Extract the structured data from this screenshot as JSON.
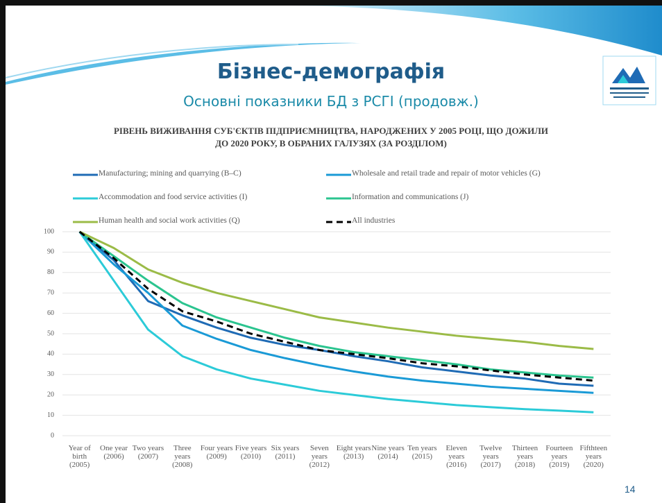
{
  "slide": {
    "title": "Бізнес-демографія",
    "subtitle": "Основні показники БД з РСГІ (продовж.)",
    "page_number": "14"
  },
  "chart_data": {
    "type": "line",
    "title": "РІВЕНЬ ВИЖИВАННЯ СУБ'ЄКТІВ ПІДПРИЄМНИЦТВА, НАРОДЖЕНИХ У 2005 РОЦІ, ЩО ДОЖИЛИ ДО 2020 РОКУ, В ОБРАНИХ ГАЛУЗЯХ (ЗА РОЗДІЛОМ)",
    "categories": [
      "Year of birth (2005)",
      "One year (2006)",
      "Two years (2007)",
      "Three years (2008)",
      "Four years (2009)",
      "Five years (2010)",
      "Six years (2011)",
      "Seven years (2012)",
      "Eight years (2013)",
      "Nine years (2014)",
      "Ten years (2015)",
      "Eleven years (2016)",
      "Twelve years (2017)",
      "Thirteen years (2018)",
      "Fourteen years (2019)",
      "Fifthteen years (2020)"
    ],
    "series": [
      {
        "name": "Manufacturing; mining and quarrying (B–C)",
        "color": "#1f6bb5",
        "values": [
          100,
          86,
          66,
          59,
          53,
          48,
          44.5,
          42,
          39,
          36.5,
          33.5,
          31.5,
          29.5,
          28,
          25.5,
          24.5
        ]
      },
      {
        "name": "Wholesale and retail trade and repair of motor vehicles (G)",
        "color": "#1a9ad6",
        "values": [
          100,
          84,
          70,
          54,
          47.5,
          42,
          38,
          34.5,
          31.5,
          29,
          27,
          25.5,
          24,
          23,
          22,
          21
        ]
      },
      {
        "name": "Accommodation and food service activities (I)",
        "color": "#2ccbd8",
        "values": [
          100,
          76,
          52,
          39,
          32.5,
          28,
          25,
          22,
          20,
          18,
          16.5,
          15,
          14,
          13,
          12.3,
          11.5
        ]
      },
      {
        "name": "Information and communications (J)",
        "color": "#2bc48f",
        "values": [
          100,
          88,
          76,
          65,
          58,
          53,
          48,
          44,
          41,
          39,
          37,
          35,
          32.5,
          31,
          29.5,
          28.5
        ]
      },
      {
        "name": "Human health and social work activities (Q)",
        "color": "#9bbb47",
        "values": [
          100,
          92,
          81.5,
          75,
          70,
          66,
          62,
          58,
          55.5,
          53,
          51,
          49,
          47.5,
          46,
          44,
          42.5
        ]
      },
      {
        "name": "All industries",
        "color": "#000000",
        "dashed": true,
        "values": [
          100,
          87,
          72,
          61,
          56,
          50,
          46,
          42,
          40,
          38,
          35.5,
          34,
          32,
          30,
          28.5,
          27
        ]
      }
    ],
    "ylim": [
      0,
      100
    ],
    "yticks": [
      0,
      10,
      20,
      30,
      40,
      50,
      60,
      70,
      80,
      90,
      100
    ],
    "grid": true
  }
}
